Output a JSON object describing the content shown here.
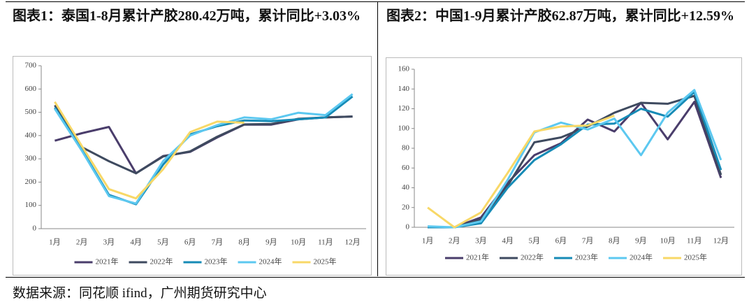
{
  "chart_data": [
    {
      "type": "line",
      "title": "图表1：泰国1-8月累计产胶280.42万吨，累计同比+3.03%",
      "categories": [
        "1月",
        "2月",
        "3月",
        "4月",
        "5月",
        "6月",
        "7月",
        "8月",
        "9月",
        "10月",
        "11月",
        "12月"
      ],
      "ylim": [
        0,
        700
      ],
      "yticks": [
        0,
        100,
        200,
        300,
        400,
        500,
        600,
        700
      ],
      "grid": false,
      "legend": "bottom",
      "series": [
        {
          "name": "2021年",
          "color": "#4a3d6b",
          "values": [
            378,
            410,
            437,
            238,
            312,
            330,
            392,
            447,
            447,
            470,
            478,
            482
          ]
        },
        {
          "name": "2022年",
          "color": "#3e4a5f",
          "values": [
            530,
            350,
            290,
            238,
            310,
            332,
            395,
            448,
            450,
            472,
            478,
            482
          ]
        },
        {
          "name": "2023年",
          "color": "#168bb6",
          "values": [
            520,
            340,
            145,
            105,
            275,
            405,
            440,
            465,
            462,
            470,
            478,
            568
          ]
        },
        {
          "name": "2024年",
          "color": "#5cc8f0",
          "values": [
            515,
            335,
            140,
            108,
            290,
            400,
            445,
            478,
            470,
            498,
            488,
            578
          ]
        },
        {
          "name": "2025年",
          "color": "#f8d867",
          "values": [
            545,
            355,
            170,
            130,
            255,
            415,
            460,
            455,
            null,
            null,
            null,
            null
          ]
        }
      ]
    },
    {
      "type": "line",
      "title": "图表2：中国1-9月累计产胶62.87万吨，累计同比+12.59%",
      "categories": [
        "1月",
        "2月",
        "3月",
        "4月",
        "5月",
        "6月",
        "7月",
        "8月",
        "9月",
        "10月",
        "11月",
        "12月"
      ],
      "ylim": [
        0,
        160
      ],
      "yticks": [
        0,
        20,
        40,
        60,
        80,
        100,
        120,
        140,
        160
      ],
      "grid": false,
      "legend": "bottom",
      "series": [
        {
          "name": "2021年",
          "color": "#4a3d6b",
          "values": [
            0,
            0,
            10,
            45,
            73,
            85,
            109,
            97,
            126,
            89,
            127,
            50
          ]
        },
        {
          "name": "2022年",
          "color": "#3e4a5f",
          "values": [
            0,
            0,
            8,
            42,
            86,
            91,
            102,
            116,
            126,
            125,
            133,
            53
          ]
        },
        {
          "name": "2023年",
          "color": "#168bb6",
          "values": [
            0,
            0,
            4,
            40,
            68,
            84,
            104,
            105,
            120,
            112,
            137,
            58
          ]
        },
        {
          "name": "2024年",
          "color": "#5cc8f0",
          "values": [
            1,
            0,
            6,
            48,
            96,
            106,
            99,
            110,
            73,
            116,
            139,
            68
          ]
        },
        {
          "name": "2025年",
          "color": "#f8d867",
          "values": [
            20,
            0,
            15,
            55,
            97,
            102,
            103,
            113,
            null,
            null,
            null,
            null
          ]
        }
      ]
    }
  ],
  "source": "数据来源：同花顺 ifind，广州期货研究中心"
}
